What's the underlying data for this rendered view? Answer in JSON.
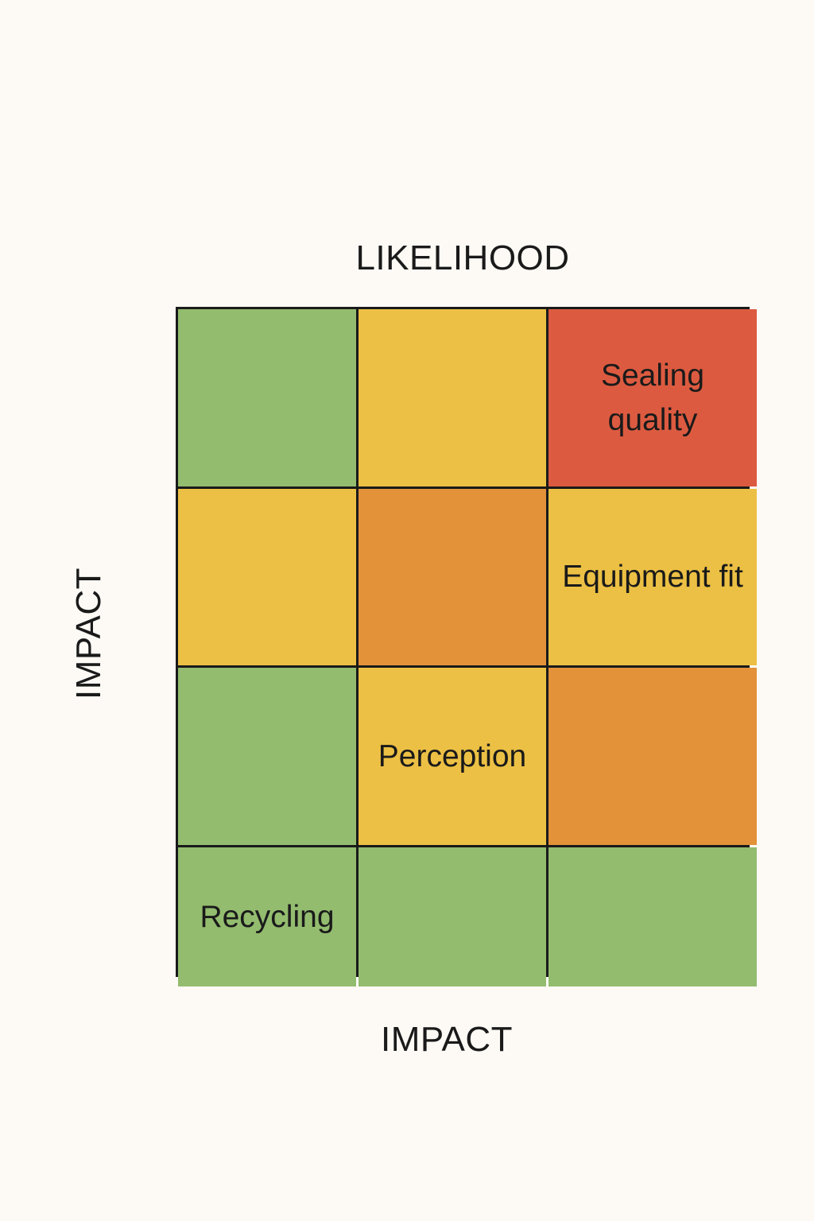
{
  "labels": {
    "top_axis": "LIKELIHOOD",
    "left_axis": "IMPACT",
    "bottom_axis": "IMPACT"
  },
  "colors": {
    "green": "#93bc6f",
    "yellow": "#ecc044",
    "orange": "#e3923a",
    "red": "#dc5b40"
  },
  "matrix": [
    [
      {
        "level": "green",
        "label": ""
      },
      {
        "level": "yellow",
        "label": ""
      },
      {
        "level": "red",
        "label": "Sealing quality"
      }
    ],
    [
      {
        "level": "yellow",
        "label": ""
      },
      {
        "level": "orange",
        "label": ""
      },
      {
        "level": "yellow",
        "label": "Equipment fit"
      }
    ],
    [
      {
        "level": "green",
        "label": ""
      },
      {
        "level": "yellow",
        "label": "Perception"
      },
      {
        "level": "orange",
        "label": ""
      }
    ],
    [
      {
        "level": "green",
        "label": "Recycling"
      },
      {
        "level": "green",
        "label": ""
      },
      {
        "level": "green",
        "label": ""
      }
    ]
  ]
}
